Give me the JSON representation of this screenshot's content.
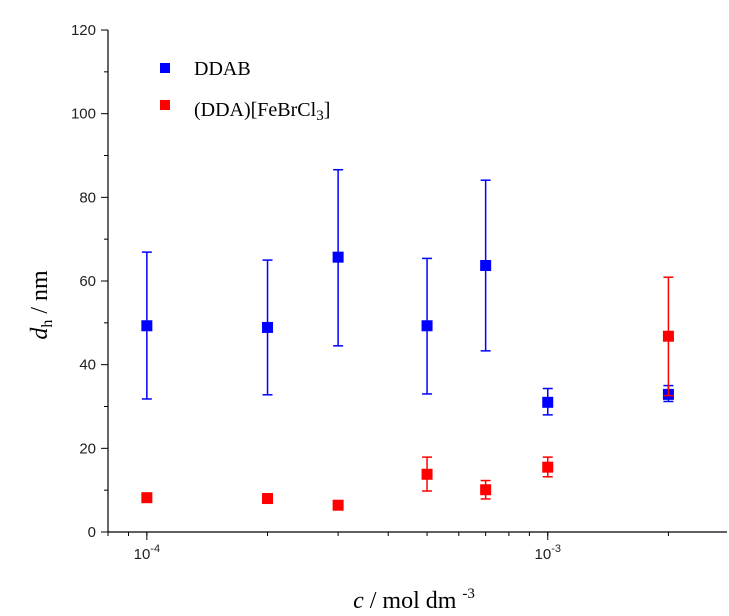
{
  "chart_data": {
    "type": "scatter",
    "x_scale": "log",
    "xlim": [
      8e-05,
      0.0028
    ],
    "ylim": [
      0,
      120
    ],
    "y_ticks": [
      0,
      20,
      40,
      60,
      80,
      100,
      120
    ],
    "x_ticks": [
      {
        "value": 0.0001,
        "base": "10",
        "exp": "-4"
      },
      {
        "value": 0.001,
        "base": "10",
        "exp": "-3"
      }
    ],
    "xlabel": {
      "var": "c",
      "rest": " / mol dm ",
      "sup": "-3"
    },
    "ylabel": {
      "var": "d",
      "sub": "h",
      "rest": " / nm"
    },
    "grid": false,
    "legend_position": "top-left",
    "series": [
      {
        "name": "DDAB",
        "color": "#0000ff",
        "points": [
          {
            "x": 0.0001,
            "y": 49.3,
            "err_low": 31.8,
            "err_high": 66.9
          },
          {
            "x": 0.0002,
            "y": 48.9,
            "err_low": 32.8,
            "err_high": 65.0
          },
          {
            "x": 0.0003,
            "y": 65.7,
            "err_low": 44.5,
            "err_high": 86.6
          },
          {
            "x": 0.0005,
            "y": 49.3,
            "err_low": 33.0,
            "err_high": 65.4
          },
          {
            "x": 0.0007,
            "y": 63.7,
            "err_low": 43.3,
            "err_high": 84.1
          },
          {
            "x": 0.001,
            "y": 31.0,
            "err_low": 28.0,
            "err_high": 34.3
          },
          {
            "x": 0.002,
            "y": 32.9,
            "err_low": 31.2,
            "err_high": 35.0
          }
        ]
      },
      {
        "name": "(DDA)[FeBrCl3]",
        "name_parts": {
          "main": "(DDA)[FeBrCl",
          "sub": "3",
          "end": "]"
        },
        "color": "#ff0000",
        "points": [
          {
            "x": 0.0001,
            "y": 8.2,
            "err_low": 7.6,
            "err_high": 8.9
          },
          {
            "x": 0.0002,
            "y": 8.0,
            "err_low": 7.0,
            "err_high": 9.1
          },
          {
            "x": 0.0003,
            "y": 6.4,
            "err_low": 5.5,
            "err_high": 7.3
          },
          {
            "x": 0.0005,
            "y": 13.8,
            "err_low": 9.8,
            "err_high": 17.9
          },
          {
            "x": 0.0007,
            "y": 10.1,
            "err_low": 7.9,
            "err_high": 12.3
          },
          {
            "x": 0.001,
            "y": 15.5,
            "err_low": 13.2,
            "err_high": 17.9
          },
          {
            "x": 0.002,
            "y": 46.8,
            "err_low": 32.6,
            "err_high": 60.9
          }
        ]
      }
    ]
  }
}
